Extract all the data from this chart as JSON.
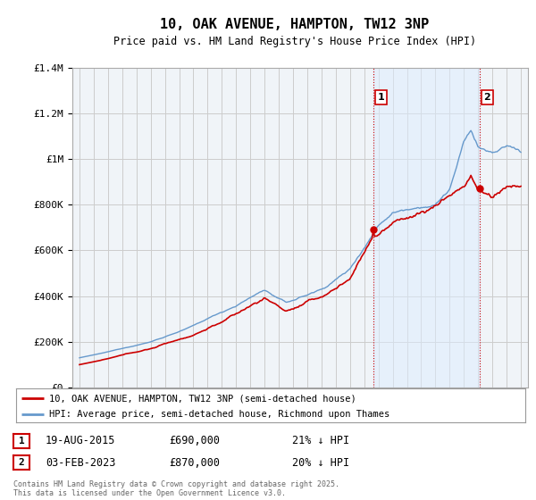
{
  "title": "10, OAK AVENUE, HAMPTON, TW12 3NP",
  "subtitle": "Price paid vs. HM Land Registry's House Price Index (HPI)",
  "y_ticks": [
    0,
    200000,
    400000,
    600000,
    800000,
    1000000,
    1200000,
    1400000
  ],
  "y_tick_labels": [
    "£0",
    "£200K",
    "£400K",
    "£600K",
    "£800K",
    "£1M",
    "£1.2M",
    "£1.4M"
  ],
  "legend_line1": "10, OAK AVENUE, HAMPTON, TW12 3NP (semi-detached house)",
  "legend_line2": "HPI: Average price, semi-detached house, Richmond upon Thames",
  "annotation1_date": "19-AUG-2015",
  "annotation1_price": "£690,000",
  "annotation1_hpi": "21% ↓ HPI",
  "annotation2_date": "03-FEB-2023",
  "annotation2_price": "£870,000",
  "annotation2_hpi": "20% ↓ HPI",
  "copyright": "Contains HM Land Registry data © Crown copyright and database right 2025.\nThis data is licensed under the Open Government Licence v3.0.",
  "red_color": "#cc0000",
  "blue_color": "#6699cc",
  "blue_fill": "#ddeeff",
  "vline_color": "#cc0000",
  "grid_color": "#cccccc",
  "bg_color": "#ffffff",
  "plot_bg_color": "#f0f4f8",
  "year1": 2015.625,
  "year2": 2023.087,
  "price1": 690000,
  "price2": 870000,
  "x_min": 1995,
  "x_max": 2026,
  "y_min": 0,
  "y_max": 1400000
}
